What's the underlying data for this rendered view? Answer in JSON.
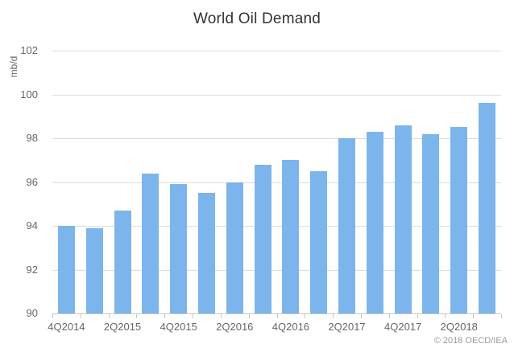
{
  "page": {
    "title": "World Oil Demand",
    "credit": "© 2018 OECD/IEA"
  },
  "chart_data": {
    "type": "bar",
    "orientation": "vertical",
    "title": "World Oil Demand",
    "ylabel": "mb/d",
    "xlabel": "",
    "categories": [
      "4Q2014",
      "1Q2015",
      "2Q2015",
      "3Q2015",
      "4Q2015",
      "1Q2016",
      "2Q2016",
      "3Q2016",
      "4Q2016",
      "1Q2017",
      "2Q2017",
      "3Q2017",
      "4Q2017",
      "1Q2018",
      "2Q2018",
      "3Q2018"
    ],
    "values": [
      94.0,
      93.9,
      94.7,
      96.4,
      95.9,
      95.5,
      96.0,
      96.8,
      97.0,
      96.5,
      98.0,
      98.3,
      98.6,
      98.2,
      98.5,
      99.6
    ],
    "x_label_step": 2,
    "x_labels_shown": [
      "4Q2014",
      "2Q2015",
      "4Q2015",
      "2Q2016",
      "4Q2016",
      "2Q2017",
      "4Q2017",
      "2Q2018"
    ],
    "ylim": [
      90,
      102
    ],
    "yticks": [
      90,
      92,
      94,
      96,
      98,
      100,
      102
    ],
    "grid": true,
    "legend": "none",
    "bar_color": "#7cb5ec",
    "credit": "© 2018 OECD/IEA"
  }
}
